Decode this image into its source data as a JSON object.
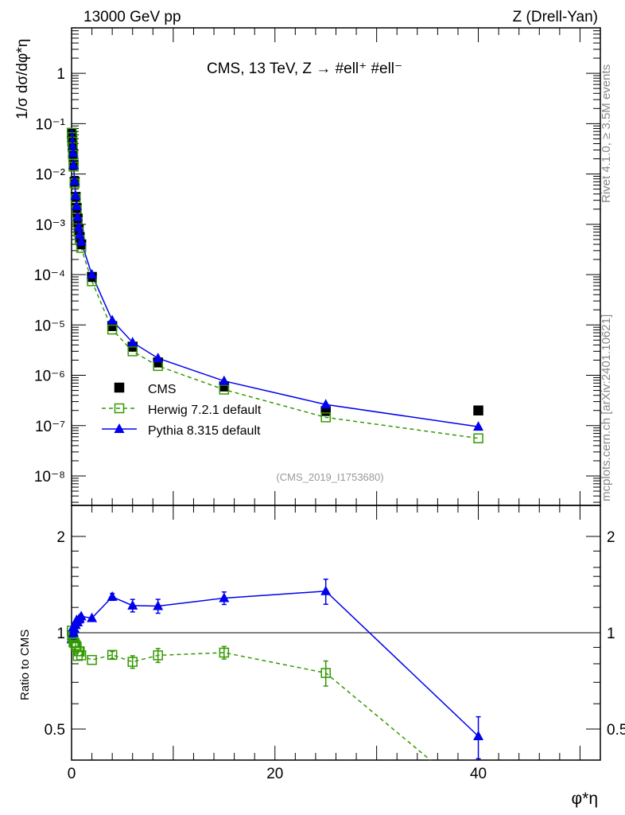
{
  "header": {
    "left": "13000 GeV pp",
    "right": "Z (Drell-Yan)"
  },
  "side": {
    "top": "Rivet 4.1.0, ≥ 3.5M events",
    "bottom": "mcplots.cern.ch [arXiv:2401.10621]"
  },
  "colors": {
    "cms": "#000000",
    "herwig": "#339900",
    "pythia": "#0000ee"
  },
  "chart_data": [
    {
      "type": "scatter",
      "title": "CMS, 13 TeV, Z →  #ell⁺ #ell⁻",
      "annotation": "(CMS_2019_I1753680)",
      "ylabel": "1/σ dσ/dφ*η",
      "yscale": "log",
      "ylim": [
        2.6e-09,
        8
      ],
      "xlim": [
        0,
        52
      ],
      "ytick_labels": [
        "1",
        "10⁻¹",
        "10⁻²",
        "10⁻³",
        "10⁻⁴",
        "10⁻⁵",
        "10⁻⁶",
        "10⁻⁷",
        "10⁻⁸"
      ],
      "legend_position": "bottom-left",
      "x": [
        0.02,
        0.05,
        0.08,
        0.11,
        0.15,
        0.2,
        0.3,
        0.4,
        0.5,
        0.6,
        0.7,
        0.8,
        0.95,
        2,
        4,
        6,
        8.5,
        15,
        25,
        40
      ],
      "series": [
        {
          "name": "CMS",
          "marker": "square-filled",
          "values": [
            0.065,
            0.055,
            0.045,
            0.035,
            0.025,
            0.015,
            0.007,
            0.0035,
            0.0021,
            0.0013,
            0.0008,
            0.00056,
            0.0004,
            9e-05,
            9.5e-06,
            3.7e-06,
            1.8e-06,
            6e-07,
            1.95e-07,
            2e-07
          ]
        },
        {
          "name": "Herwig 7.2.1 default",
          "marker": "square-open",
          "line": "dashed",
          "values": [
            0.066,
            0.054,
            0.044,
            0.034,
            0.024,
            0.014,
            0.0065,
            0.0032,
            0.0019,
            0.0011,
            0.0007,
            0.00049,
            0.00034,
            7.4e-05,
            8.1e-06,
            3e-06,
            1.53e-06,
            5.2e-07,
            1.46e-07,
            5.6e-08
          ]
        },
        {
          "name": "Pythia 8.315 default",
          "marker": "triangle",
          "line": "solid",
          "values": [
            0.062,
            0.053,
            0.044,
            0.035,
            0.026,
            0.015,
            0.0072,
            0.0037,
            0.0023,
            0.0014,
            0.00088,
            0.00062,
            0.00045,
            0.0001,
            1.23e-05,
            4.5e-06,
            2.18e-06,
            7.7e-07,
            2.63e-07,
            9.5e-08
          ]
        }
      ]
    },
    {
      "type": "scatter",
      "ylabel": "Ratio to CMS",
      "xlabel": "φ*η",
      "yscale": "log",
      "ylim": [
        0.4,
        2.5
      ],
      "xlim": [
        0,
        52
      ],
      "ytick_labels": [
        "2",
        "1",
        "0.5"
      ],
      "xtick_labels": [
        "0",
        "20",
        "40"
      ],
      "rel_errors": [
        0.01,
        0.01,
        0.01,
        0.01,
        0.01,
        0.01,
        0.01,
        0.01,
        0.01,
        0.01,
        0.01,
        0.01,
        0.01,
        0.01,
        0.025,
        0.045,
        0.05,
        0.045,
        0.09,
        0.15
      ]
    }
  ]
}
